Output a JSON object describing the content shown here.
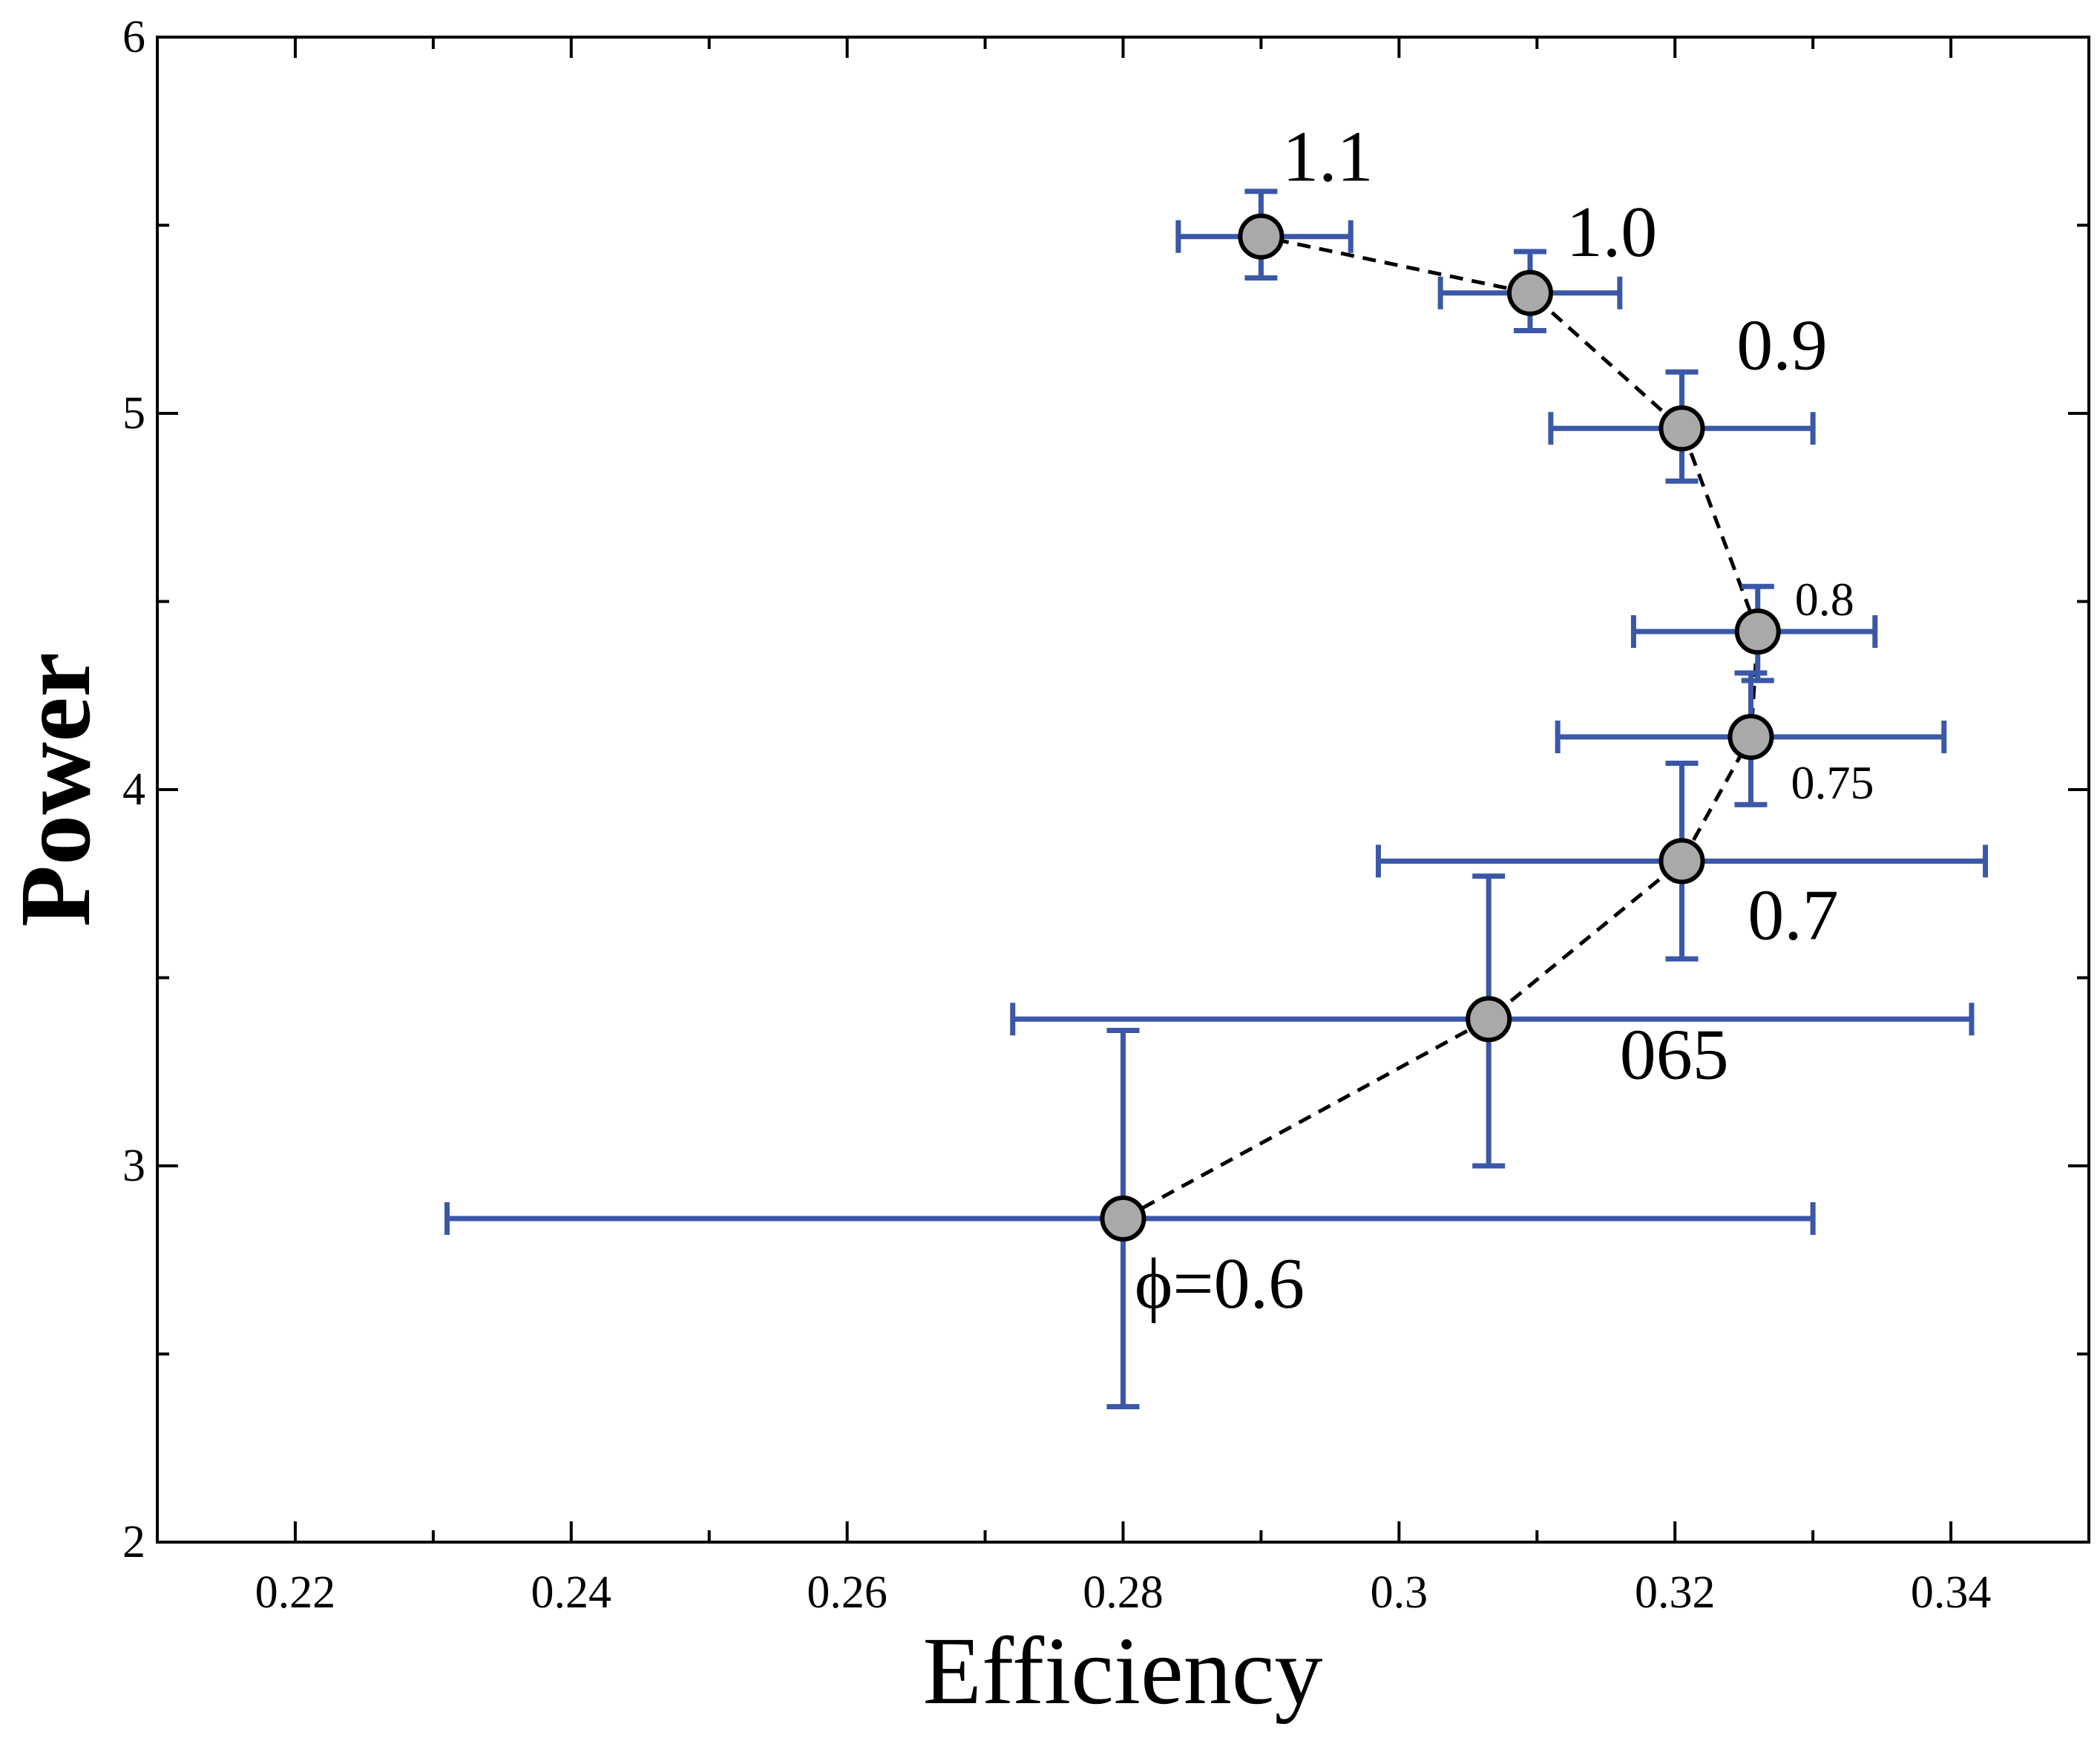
{
  "chart_data": {
    "type": "scatter",
    "title": "",
    "xlabel": "Efficiency",
    "ylabel": "Power",
    "xlim": [
      0.21,
      0.35
    ],
    "ylim": [
      2,
      6
    ],
    "x_ticks": [
      0.22,
      0.24,
      0.26,
      0.28,
      0.3,
      0.32,
      0.34
    ],
    "x_tick_labels": [
      "0.22",
      "0.24",
      "0.26",
      "0.28",
      "0.3",
      "0.32",
      "0.34"
    ],
    "y_ticks": [
      2,
      3,
      4,
      5,
      6
    ],
    "y_tick_labels": [
      "2",
      "3",
      "4",
      "5",
      "6"
    ],
    "grid": false,
    "connector": "dashed",
    "colors": {
      "errorbar": "#3a57a8",
      "marker_fill": "#a9a9a9",
      "marker_edge": "#000000",
      "line": "#000000"
    },
    "series": [
      {
        "name": "phi",
        "points": [
          {
            "label": "ϕ=0.6",
            "x": 0.28,
            "y": 2.86,
            "xerr": [
              0.231,
              0.33
            ],
            "yerr": [
              2.36,
              3.36
            ]
          },
          {
            "label": "065",
            "x": 0.3065,
            "y": 3.39,
            "xerr": [
              0.272,
              0.3415
            ],
            "yerr": [
              3.0,
              3.77
            ]
          },
          {
            "label": "0.7",
            "x": 0.3205,
            "y": 3.81,
            "xerr": [
              0.2985,
              0.3425
            ],
            "yerr": [
              3.55,
              4.07
            ]
          },
          {
            "label": "0.75",
            "x": 0.3255,
            "y": 4.14,
            "xerr": [
              0.3115,
              0.3395
            ],
            "yerr": [
              3.96,
              4.31
            ]
          },
          {
            "label": "0.8",
            "x": 0.326,
            "y": 4.42,
            "xerr": [
              0.317,
              0.3345
            ],
            "yerr": [
              4.29,
              4.54
            ]
          },
          {
            "label": "0.9",
            "x": 0.3205,
            "y": 4.96,
            "xerr": [
              0.311,
              0.33
            ],
            "yerr": [
              4.82,
              5.11
            ]
          },
          {
            "label": "1.0",
            "x": 0.3095,
            "y": 5.32,
            "xerr": [
              0.303,
              0.316
            ],
            "yerr": [
              5.22,
              5.43
            ]
          },
          {
            "label": "1.1",
            "x": 0.29,
            "y": 5.47,
            "xerr": [
              0.284,
              0.2965
            ],
            "yerr": [
              5.36,
              5.59
            ]
          }
        ]
      }
    ]
  }
}
